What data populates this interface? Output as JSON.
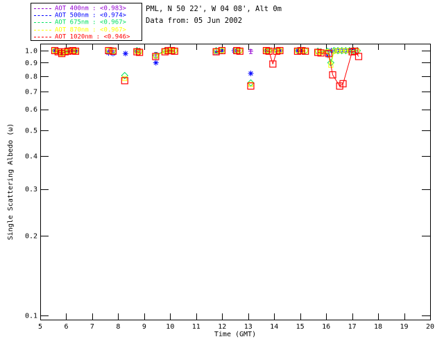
{
  "header": {
    "station": "PML, N 50 22', W 04 08', Alt 0m",
    "date_line": "Data from: 05 Jun 2002"
  },
  "chart_data": {
    "type": "scatter",
    "title": "",
    "xlabel": "Time (GMT)",
    "ylabel": "Single Scattering Albedo (ω)",
    "x_range": [
      5,
      20
    ],
    "y_range": [
      0.1,
      1.0
    ],
    "y_scale": "log",
    "grid": false,
    "legend_position": "top-left-outside",
    "x_ticks": [
      5,
      6,
      7,
      8,
      9,
      10,
      11,
      12,
      13,
      14,
      15,
      16,
      17,
      18,
      19,
      20
    ],
    "y_ticks": [
      "1.0",
      "0.9",
      "0.8",
      "0.7",
      "0.6",
      "0.5",
      "0.4",
      "0.3",
      "0.2",
      "0.1"
    ],
    "axis_color": "#000000",
    "background_color": "#FFFFFF",
    "series": [
      {
        "name": "AOT 400nm",
        "legend_label": "AOT  400nm : <0.983>",
        "mean": 0.983,
        "color": "#9400D3",
        "symbol": "plus",
        "points": [
          [
            5.56,
            1.0
          ],
          [
            5.69,
            0.995
          ],
          [
            5.83,
            0.985
          ],
          [
            5.96,
            0.99
          ],
          [
            6.07,
            0.995
          ],
          [
            6.25,
            1.0
          ],
          [
            6.36,
            1.0
          ],
          [
            7.63,
            1.0
          ],
          [
            7.8,
            1.0
          ],
          [
            8.72,
            1.0
          ],
          [
            9.45,
            0.962
          ],
          [
            9.93,
            1.0
          ],
          [
            10.05,
            1.0
          ],
          [
            11.99,
            1.0
          ],
          [
            12.56,
            1.0
          ],
          [
            13.1,
            0.995
          ],
          [
            13.7,
            1.0
          ],
          [
            13.8,
            1.0
          ],
          [
            14.1,
            1.0
          ],
          [
            14.22,
            1.0
          ],
          [
            14.9,
            1.0
          ],
          [
            15.05,
            1.0
          ],
          [
            16.07,
            0.99
          ],
          [
            16.2,
            1.0
          ],
          [
            16.35,
            1.0
          ],
          [
            16.5,
            1.0
          ],
          [
            16.65,
            1.0
          ],
          [
            16.8,
            1.0
          ],
          [
            16.95,
            1.0
          ],
          [
            17.1,
            1.0
          ]
        ],
        "error_bars": [
          {
            "h": 9.45,
            "lo": 0.935,
            "hi": 0.985
          },
          {
            "h": 13.1,
            "lo": 0.975,
            "hi": 1.008
          },
          {
            "h": 16.07,
            "lo": 0.967,
            "hi": 1.005
          }
        ]
      },
      {
        "name": "AOT 500nm",
        "legend_label": "AOT  500nm : <0.974>",
        "mean": 0.974,
        "color": "#0000FF",
        "symbol": "asterisk",
        "points": [
          [
            5.56,
            1.0
          ],
          [
            5.69,
            0.99
          ],
          [
            5.83,
            0.98
          ],
          [
            5.96,
            0.985
          ],
          [
            6.07,
            0.99
          ],
          [
            6.25,
            1.0
          ],
          [
            6.36,
            0.995
          ],
          [
            7.63,
            0.98
          ],
          [
            7.8,
            0.975
          ],
          [
            8.28,
            0.975
          ],
          [
            8.72,
            0.99
          ],
          [
            9.45,
            0.9
          ],
          [
            9.93,
            0.99
          ],
          [
            10.05,
            0.995
          ],
          [
            11.77,
            0.985
          ],
          [
            11.99,
            1.0
          ],
          [
            12.47,
            1.0
          ],
          [
            12.6,
            1.0
          ],
          [
            13.1,
            0.82
          ],
          [
            13.7,
            1.0
          ],
          [
            13.8,
            1.0
          ],
          [
            14.1,
            1.0
          ],
          [
            14.22,
            1.0
          ],
          [
            14.9,
            1.0
          ],
          [
            15.05,
            1.0
          ],
          [
            16.07,
            0.96
          ],
          [
            16.2,
            1.0
          ],
          [
            16.35,
            1.0
          ],
          [
            16.5,
            1.0
          ],
          [
            16.65,
            1.0
          ],
          [
            16.8,
            1.0
          ],
          [
            16.95,
            1.0
          ],
          [
            17.1,
            1.0
          ]
        ],
        "error_bars": []
      },
      {
        "name": "AOT 675nm",
        "legend_label": "AOT  675nm : <0.967>",
        "mean": 0.967,
        "color": "#00E060",
        "symbol": "diamond",
        "points": [
          [
            5.56,
            1.0
          ],
          [
            5.69,
            0.995
          ],
          [
            5.83,
            0.98
          ],
          [
            5.96,
            0.99
          ],
          [
            6.07,
            1.0
          ],
          [
            6.25,
            1.0
          ],
          [
            6.36,
            1.0
          ],
          [
            7.63,
            1.0
          ],
          [
            7.8,
            1.0
          ],
          [
            8.25,
            0.805
          ],
          [
            8.72,
            1.0
          ],
          [
            8.82,
            0.995
          ],
          [
            9.45,
            0.96
          ],
          [
            9.8,
            1.0
          ],
          [
            9.93,
            1.0
          ],
          [
            10.05,
            1.0
          ],
          [
            10.17,
            1.0
          ],
          [
            11.77,
            1.0
          ],
          [
            11.99,
            1.0
          ],
          [
            12.56,
            1.0
          ],
          [
            12.68,
            1.0
          ],
          [
            13.1,
            0.755
          ],
          [
            13.7,
            1.0
          ],
          [
            13.8,
            1.0
          ],
          [
            14.1,
            1.0
          ],
          [
            14.22,
            1.0
          ],
          [
            14.9,
            1.0
          ],
          [
            15.05,
            1.0
          ],
          [
            15.2,
            1.0
          ],
          [
            15.68,
            0.995
          ],
          [
            15.8,
            0.99
          ],
          [
            16.05,
            0.995
          ],
          [
            16.18,
            0.9
          ],
          [
            16.3,
            1.0
          ],
          [
            16.45,
            1.0
          ],
          [
            16.6,
            1.0
          ],
          [
            16.75,
            1.0
          ],
          [
            16.9,
            1.0
          ],
          [
            17.05,
            1.0
          ],
          [
            17.2,
            1.0
          ]
        ],
        "error_bars": []
      },
      {
        "name": "AOT 870nm",
        "legend_label": "AOT  870nm : <0.967>",
        "mean": 0.967,
        "color": "#FFFF00",
        "symbol": "square-small",
        "points": [
          [
            5.56,
            1.0
          ],
          [
            5.69,
            0.99
          ],
          [
            5.83,
            0.975
          ],
          [
            5.96,
            0.99
          ],
          [
            6.07,
            0.995
          ],
          [
            6.25,
            1.0
          ],
          [
            6.36,
            0.995
          ],
          [
            7.63,
            1.0
          ],
          [
            7.8,
            0.995
          ],
          [
            8.25,
            0.785
          ],
          [
            8.72,
            0.995
          ],
          [
            8.82,
            0.99
          ],
          [
            9.45,
            0.955
          ],
          [
            9.8,
            0.995
          ],
          [
            9.93,
            1.0
          ],
          [
            10.05,
            1.0
          ],
          [
            10.17,
            1.0
          ],
          [
            11.77,
            0.995
          ],
          [
            11.99,
            1.0
          ],
          [
            12.56,
            1.0
          ],
          [
            12.68,
            1.0
          ],
          [
            13.1,
            0.745
          ],
          [
            13.7,
            1.0
          ],
          [
            13.8,
            1.0
          ],
          [
            14.1,
            1.0
          ],
          [
            14.22,
            1.0
          ],
          [
            14.9,
            1.0
          ],
          [
            15.05,
            1.0
          ],
          [
            15.2,
            1.0
          ],
          [
            15.68,
            0.99
          ],
          [
            15.8,
            0.985
          ],
          [
            16.05,
            0.99
          ],
          [
            16.18,
            0.88
          ],
          [
            16.3,
            0.995
          ],
          [
            16.45,
            1.0
          ],
          [
            16.6,
            1.0
          ],
          [
            16.75,
            1.0
          ],
          [
            16.9,
            1.0
          ],
          [
            17.05,
            1.0
          ],
          [
            17.2,
            0.995
          ]
        ],
        "error_bars": []
      },
      {
        "name": "AOT 1020nm",
        "legend_label": "AOT 1020nm : <0.946>",
        "mean": 0.946,
        "color": "#FF0000",
        "symbol": "square",
        "points": [
          [
            5.56,
            1.0
          ],
          [
            5.69,
            0.99
          ],
          [
            5.83,
            0.975
          ],
          [
            5.96,
            0.99
          ],
          [
            6.07,
            0.995
          ],
          [
            6.25,
            1.0
          ],
          [
            6.36,
            0.995
          ],
          [
            7.63,
            1.0
          ],
          [
            7.8,
            0.995
          ],
          [
            8.25,
            0.77
          ],
          [
            8.72,
            0.99
          ],
          [
            8.82,
            0.985
          ],
          [
            9.44,
            0.95
          ],
          [
            9.8,
            0.99
          ],
          [
            9.93,
            1.0
          ],
          [
            10.05,
            1.0
          ],
          [
            10.17,
            0.995
          ],
          [
            11.77,
            0.99
          ],
          [
            11.99,
            1.0
          ],
          [
            12.56,
            1.0
          ],
          [
            12.68,
            0.995
          ],
          [
            13.1,
            0.735
          ],
          [
            13.7,
            1.0
          ],
          [
            13.8,
            0.995
          ],
          [
            13.95,
            0.89
          ],
          [
            14.1,
            0.995
          ],
          [
            14.22,
            1.0
          ],
          [
            14.9,
            0.995
          ],
          [
            15.05,
            1.0
          ],
          [
            15.2,
            0.995
          ],
          [
            15.68,
            0.985
          ],
          [
            15.8,
            0.98
          ],
          [
            16.1,
            0.975
          ],
          [
            16.25,
            0.81
          ],
          [
            16.52,
            0.735
          ],
          [
            16.65,
            0.75
          ],
          [
            17.0,
            0.99
          ],
          [
            17.1,
            0.995
          ],
          [
            17.25,
            0.95
          ]
        ],
        "error_bars": []
      }
    ]
  }
}
